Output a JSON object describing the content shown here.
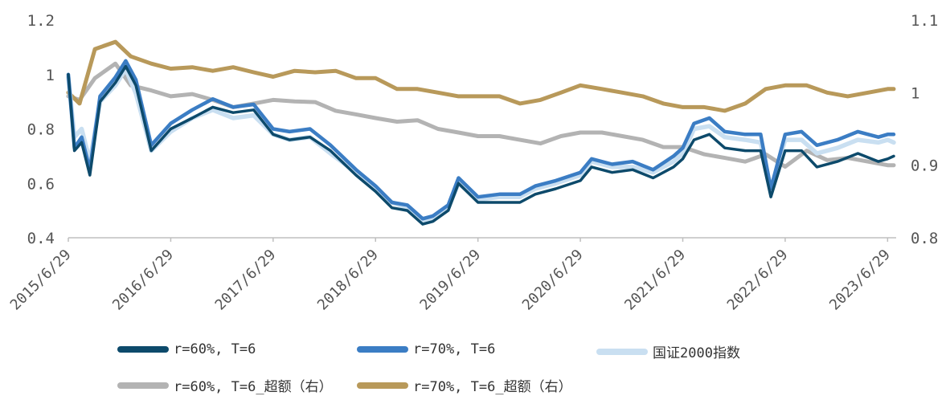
{
  "chart_data": {
    "type": "line",
    "x_axis": {
      "ticks": [
        "2015/6/29",
        "2016/6/29",
        "2017/6/29",
        "2018/6/29",
        "2019/6/29",
        "2020/6/29",
        "2021/6/29",
        "2022/6/29",
        "2023/6/29"
      ]
    },
    "y_left": {
      "range": [
        0.4,
        1.2
      ],
      "ticks": [
        "0.4",
        "0.6",
        "0.8",
        "1",
        "1.2"
      ]
    },
    "y_right": {
      "range": [
        0.8,
        1.1
      ],
      "ticks": [
        "0.8",
        "0.9",
        "1",
        "1.1"
      ]
    },
    "grid": false,
    "legend_position": "bottom",
    "series": [
      {
        "name": "r=60%, T=6",
        "axis": "left",
        "color": "#0d4a6b",
        "x": [
          2015.49,
          2015.55,
          2015.62,
          2015.7,
          2015.8,
          2015.95,
          2016.05,
          2016.15,
          2016.3,
          2016.49,
          2016.7,
          2016.9,
          2017.1,
          2017.3,
          2017.49,
          2017.65,
          2017.85,
          2018.05,
          2018.3,
          2018.49,
          2018.65,
          2018.8,
          2018.95,
          2019.05,
          2019.2,
          2019.3,
          2019.49,
          2019.7,
          2019.9,
          2020.05,
          2020.25,
          2020.49,
          2020.6,
          2020.8,
          2021.0,
          2021.2,
          2021.4,
          2021.49,
          2021.6,
          2021.75,
          2021.9,
          2022.1,
          2022.25,
          2022.35,
          2022.49,
          2022.65,
          2022.8,
          2023.0,
          2023.2,
          2023.4,
          2023.49,
          2023.55
        ],
        "y": [
          1.0,
          0.72,
          0.75,
          0.63,
          0.9,
          0.97,
          1.03,
          0.96,
          0.72,
          0.8,
          0.84,
          0.88,
          0.86,
          0.87,
          0.78,
          0.76,
          0.77,
          0.72,
          0.63,
          0.57,
          0.51,
          0.5,
          0.45,
          0.46,
          0.5,
          0.6,
          0.53,
          0.53,
          0.53,
          0.56,
          0.58,
          0.61,
          0.66,
          0.64,
          0.65,
          0.62,
          0.66,
          0.69,
          0.76,
          0.78,
          0.73,
          0.72,
          0.72,
          0.55,
          0.72,
          0.72,
          0.66,
          0.68,
          0.71,
          0.68,
          0.69,
          0.7
        ]
      },
      {
        "name": "r=70%, T=6",
        "axis": "left",
        "color": "#3b7dc4",
        "x": [
          2015.49,
          2015.55,
          2015.62,
          2015.7,
          2015.8,
          2015.95,
          2016.05,
          2016.15,
          2016.3,
          2016.49,
          2016.7,
          2016.9,
          2017.1,
          2017.3,
          2017.49,
          2017.65,
          2017.85,
          2018.05,
          2018.3,
          2018.49,
          2018.65,
          2018.8,
          2018.95,
          2019.05,
          2019.2,
          2019.3,
          2019.49,
          2019.7,
          2019.9,
          2020.05,
          2020.25,
          2020.49,
          2020.6,
          2020.8,
          2021.0,
          2021.2,
          2021.4,
          2021.49,
          2021.6,
          2021.75,
          2021.9,
          2022.1,
          2022.25,
          2022.35,
          2022.49,
          2022.65,
          2022.8,
          2023.0,
          2023.2,
          2023.4,
          2023.49,
          2023.55
        ],
        "y": [
          1.0,
          0.73,
          0.77,
          0.65,
          0.92,
          0.99,
          1.05,
          0.98,
          0.74,
          0.82,
          0.87,
          0.91,
          0.88,
          0.89,
          0.8,
          0.79,
          0.8,
          0.74,
          0.65,
          0.59,
          0.53,
          0.52,
          0.47,
          0.48,
          0.52,
          0.62,
          0.55,
          0.56,
          0.56,
          0.59,
          0.61,
          0.64,
          0.69,
          0.67,
          0.68,
          0.65,
          0.7,
          0.73,
          0.82,
          0.84,
          0.79,
          0.78,
          0.78,
          0.58,
          0.78,
          0.79,
          0.74,
          0.76,
          0.79,
          0.77,
          0.78,
          0.78
        ]
      },
      {
        "name": "国证2000指数",
        "axis": "left",
        "color": "#c9dff1",
        "x": [
          2015.49,
          2015.55,
          2015.62,
          2015.7,
          2015.8,
          2015.95,
          2016.05,
          2016.15,
          2016.3,
          2016.49,
          2016.7,
          2016.9,
          2017.1,
          2017.3,
          2017.49,
          2017.65,
          2017.85,
          2018.05,
          2018.3,
          2018.49,
          2018.65,
          2018.8,
          2018.95,
          2019.05,
          2019.2,
          2019.3,
          2019.49,
          2019.7,
          2019.9,
          2020.05,
          2020.25,
          2020.49,
          2020.6,
          2020.8,
          2021.0,
          2021.2,
          2021.4,
          2021.49,
          2021.6,
          2021.75,
          2021.9,
          2022.1,
          2022.25,
          2022.35,
          2022.49,
          2022.65,
          2022.8,
          2023.0,
          2023.2,
          2023.4,
          2023.49,
          2023.55
        ],
        "y": [
          0.99,
          0.77,
          0.8,
          0.68,
          0.9,
          0.96,
          1.02,
          0.93,
          0.72,
          0.79,
          0.84,
          0.87,
          0.84,
          0.85,
          0.78,
          0.76,
          0.77,
          0.71,
          0.64,
          0.58,
          0.53,
          0.51,
          0.46,
          0.47,
          0.51,
          0.6,
          0.54,
          0.55,
          0.55,
          0.58,
          0.6,
          0.63,
          0.68,
          0.66,
          0.66,
          0.64,
          0.68,
          0.71,
          0.8,
          0.81,
          0.77,
          0.76,
          0.75,
          0.58,
          0.76,
          0.76,
          0.71,
          0.73,
          0.76,
          0.75,
          0.76,
          0.75
        ]
      },
      {
        "name": "r=60%, T=6_超额（右）",
        "axis": "right",
        "color": "#b3b3b3",
        "x": [
          2015.49,
          2015.6,
          2015.75,
          2015.95,
          2016.1,
          2016.3,
          2016.49,
          2016.7,
          2016.9,
          2017.1,
          2017.3,
          2017.49,
          2017.7,
          2017.9,
          2018.1,
          2018.3,
          2018.49,
          2018.7,
          2018.9,
          2019.1,
          2019.3,
          2019.49,
          2019.7,
          2019.9,
          2020.1,
          2020.3,
          2020.49,
          2020.7,
          2020.9,
          2021.1,
          2021.3,
          2021.49,
          2021.7,
          2021.9,
          2022.1,
          2022.3,
          2022.49,
          2022.7,
          2022.9,
          2023.1,
          2023.3,
          2023.49,
          2023.55
        ],
        "y": [
          0.995,
          0.99,
          1.02,
          1.04,
          1.01,
          1.003,
          0.995,
          0.998,
          0.99,
          0.98,
          0.985,
          0.99,
          0.988,
          0.987,
          0.975,
          0.97,
          0.965,
          0.96,
          0.962,
          0.95,
          0.945,
          0.94,
          0.94,
          0.935,
          0.93,
          0.94,
          0.945,
          0.945,
          0.94,
          0.935,
          0.925,
          0.925,
          0.915,
          0.91,
          0.905,
          0.915,
          0.898,
          0.92,
          0.907,
          0.91,
          0.905,
          0.9,
          0.9
        ]
      },
      {
        "name": "r=70%, T=6_超额（右）",
        "axis": "right",
        "color": "#b8995a",
        "x": [
          2015.49,
          2015.6,
          2015.75,
          2015.95,
          2016.1,
          2016.3,
          2016.49,
          2016.7,
          2016.9,
          2017.1,
          2017.3,
          2017.49,
          2017.7,
          2017.9,
          2018.1,
          2018.3,
          2018.49,
          2018.7,
          2018.9,
          2019.1,
          2019.3,
          2019.49,
          2019.7,
          2019.9,
          2020.1,
          2020.3,
          2020.49,
          2020.7,
          2020.9,
          2021.1,
          2021.3,
          2021.49,
          2021.7,
          2021.9,
          2022.1,
          2022.3,
          2022.49,
          2022.7,
          2022.9,
          2023.1,
          2023.3,
          2023.49,
          2023.55
        ],
        "y": [
          1.0,
          0.985,
          1.06,
          1.07,
          1.05,
          1.04,
          1.033,
          1.035,
          1.03,
          1.035,
          1.028,
          1.022,
          1.03,
          1.028,
          1.03,
          1.02,
          1.02,
          1.005,
          1.005,
          1.0,
          0.995,
          0.995,
          0.995,
          0.985,
          0.99,
          1.0,
          1.01,
          1.005,
          1.0,
          0.995,
          0.985,
          0.98,
          0.98,
          0.975,
          0.985,
          1.005,
          1.01,
          1.01,
          1.0,
          0.995,
          1.0,
          1.005,
          1.005
        ]
      }
    ]
  }
}
